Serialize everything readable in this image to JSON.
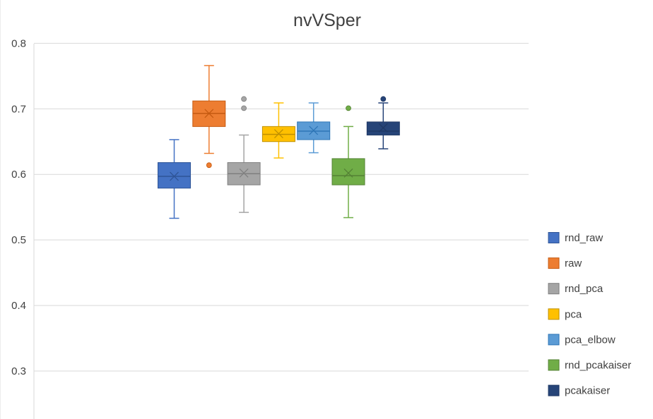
{
  "chart_data": {
    "type": "box",
    "title": "nvVSper",
    "xlabel": "",
    "ylabel": "",
    "ylim": [
      0.25,
      0.8
    ],
    "yticks": [
      "0.8",
      "0.7",
      "0.6",
      "0.5",
      "0.4",
      "0.3"
    ],
    "ytick_values": [
      0.8,
      0.7,
      0.6,
      0.5,
      0.4,
      0.3
    ],
    "grid": true,
    "legend_position": "right",
    "series": [
      {
        "name": "rnd_raw",
        "color": "#4472C4",
        "stroke": "#2F5597",
        "min": 0.533,
        "q1": 0.579,
        "median": 0.597,
        "q3": 0.618,
        "max": 0.653,
        "mean": 0.597,
        "outliers": []
      },
      {
        "name": "raw",
        "color": "#ED7D31",
        "stroke": "#C55A11",
        "min": 0.632,
        "q1": 0.673,
        "median": 0.693,
        "q3": 0.712,
        "max": 0.766,
        "mean": 0.693,
        "outliers": [
          0.614
        ]
      },
      {
        "name": "rnd_pca",
        "color": "#A5A5A5",
        "stroke": "#7F7F7F",
        "min": 0.542,
        "q1": 0.584,
        "median": 0.601,
        "q3": 0.618,
        "max": 0.66,
        "mean": 0.602,
        "outliers": [
          0.701,
          0.715
        ]
      },
      {
        "name": "pca",
        "color": "#FFC000",
        "stroke": "#BF9000",
        "min": 0.625,
        "q1": 0.65,
        "median": 0.661,
        "q3": 0.673,
        "max": 0.709,
        "mean": 0.662,
        "outliers": []
      },
      {
        "name": "pca_elbow",
        "color": "#5B9BD5",
        "stroke": "#2E75B6",
        "min": 0.633,
        "q1": 0.653,
        "median": 0.666,
        "q3": 0.68,
        "max": 0.709,
        "mean": 0.667,
        "outliers": []
      },
      {
        "name": "rnd_pcakaiser",
        "color": "#70AD47",
        "stroke": "#548235",
        "min": 0.534,
        "q1": 0.584,
        "median": 0.598,
        "q3": 0.624,
        "max": 0.673,
        "mean": 0.602,
        "outliers": [
          0.701
        ]
      },
      {
        "name": "pcakaiser",
        "color": "#264478",
        "stroke": "#1F3864",
        "min": 0.639,
        "q1": 0.66,
        "median": 0.666,
        "q3": 0.68,
        "max": 0.709,
        "mean": 0.671,
        "outliers": [
          0.715
        ]
      }
    ]
  }
}
